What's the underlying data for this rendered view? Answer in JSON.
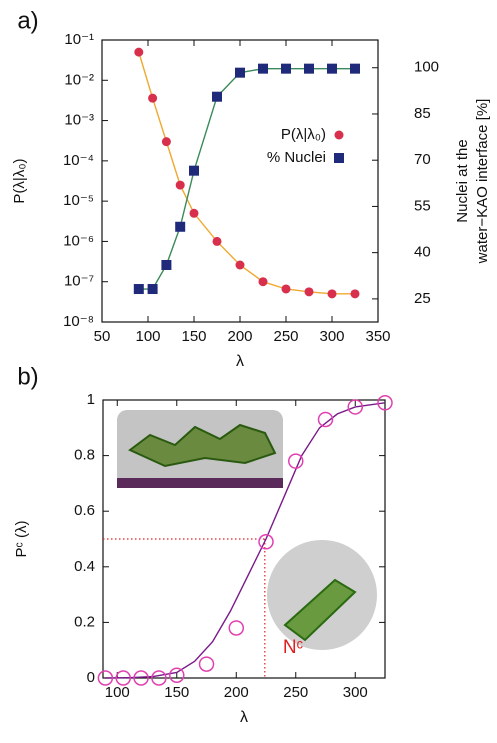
{
  "chart_data": [
    {
      "type": "line",
      "panel_label": "a)",
      "xlabel": "λ",
      "ylabel": "P(λ|λ₀)",
      "y2label": [
        "Nuclei at the",
        "water−KAO interface [%]"
      ],
      "ylog": true,
      "grid": false,
      "legend": "center-right",
      "xlim": [
        50,
        350
      ],
      "xticks": [
        50,
        100,
        150,
        200,
        250,
        300,
        350
      ],
      "ylim": [
        1e-08,
        0.1
      ],
      "yticks": [
        {
          "value": 1e-08,
          "label": "10⁻⁸"
        },
        {
          "value": 1e-07,
          "label": "10⁻⁷"
        },
        {
          "value": 1e-06,
          "label": "10⁻⁶"
        },
        {
          "value": 1e-05,
          "label": "10⁻⁵"
        },
        {
          "value": 0.0001,
          "label": "10⁻⁴"
        },
        {
          "value": 0.001,
          "label": "10⁻³"
        },
        {
          "value": 0.01,
          "label": "10⁻²"
        },
        {
          "value": 0.1,
          "label": "10⁻¹"
        }
      ],
      "y2lim": [
        17.5,
        109
      ],
      "y2ticks": [
        25,
        40,
        55,
        70,
        85,
        100
      ],
      "x": [
        90,
        105,
        120,
        135,
        150,
        175,
        200,
        225,
        250,
        275,
        300,
        325
      ],
      "series": [
        {
          "name": "P(λ|λ₀)",
          "color": "#d8304c",
          "line_color": "#f0a830",
          "marker": "circle",
          "values": [
            0.05,
            0.0036,
            0.0003,
            2.5e-05,
            5e-06,
            1e-06,
            2.6e-07,
            1e-07,
            6.6e-08,
            5.6e-08,
            5e-08,
            5e-08
          ]
        },
        {
          "name": "% Nuclei",
          "color": "#1f2a7a",
          "line_color": "#3a8a5a",
          "marker": "square",
          "axis": "y2",
          "values": [
            28.2,
            28.2,
            36,
            48.4,
            66.6,
            90.6,
            98.4,
            99.7,
            99.7,
            99.7,
            99.7,
            99.7
          ]
        }
      ]
    },
    {
      "type": "line",
      "panel_label": "b)",
      "xlabel": "λ",
      "ylabel": "Pᶜ (λ)",
      "grid": false,
      "xlim": [
        88,
        325
      ],
      "xticks": [
        100,
        150,
        200,
        250,
        300
      ],
      "ylim": [
        0,
        1
      ],
      "yticks": [
        0,
        0.2,
        0.4,
        0.6,
        0.8,
        1
      ],
      "series": [
        {
          "color": "#7a1a8a",
          "line_color": "#7a1a8a",
          "marker": "none",
          "x": [
            90,
            110,
            130,
            150,
            165,
            180,
            195,
            210,
            225,
            240,
            255,
            270,
            285,
            300,
            325
          ],
          "values": [
            0,
            0.001,
            0.005,
            0.02,
            0.06,
            0.13,
            0.24,
            0.37,
            0.5,
            0.65,
            0.8,
            0.9,
            0.95,
            0.975,
            0.99
          ]
        },
        {
          "color": "#e040b0",
          "marker": "open-circle",
          "x": [
            90,
            105,
            120,
            135,
            150,
            175,
            200,
            225,
            250,
            275,
            300,
            325
          ],
          "values": [
            0,
            0,
            0,
            0,
            0.01,
            0.05,
            0.18,
            0.49,
            0.78,
            0.93,
            0.975,
            0.99
          ]
        }
      ],
      "marker_line": {
        "x": 224,
        "y": 0.5,
        "label": "Nᶜ",
        "color": "#e02020"
      }
    }
  ]
}
